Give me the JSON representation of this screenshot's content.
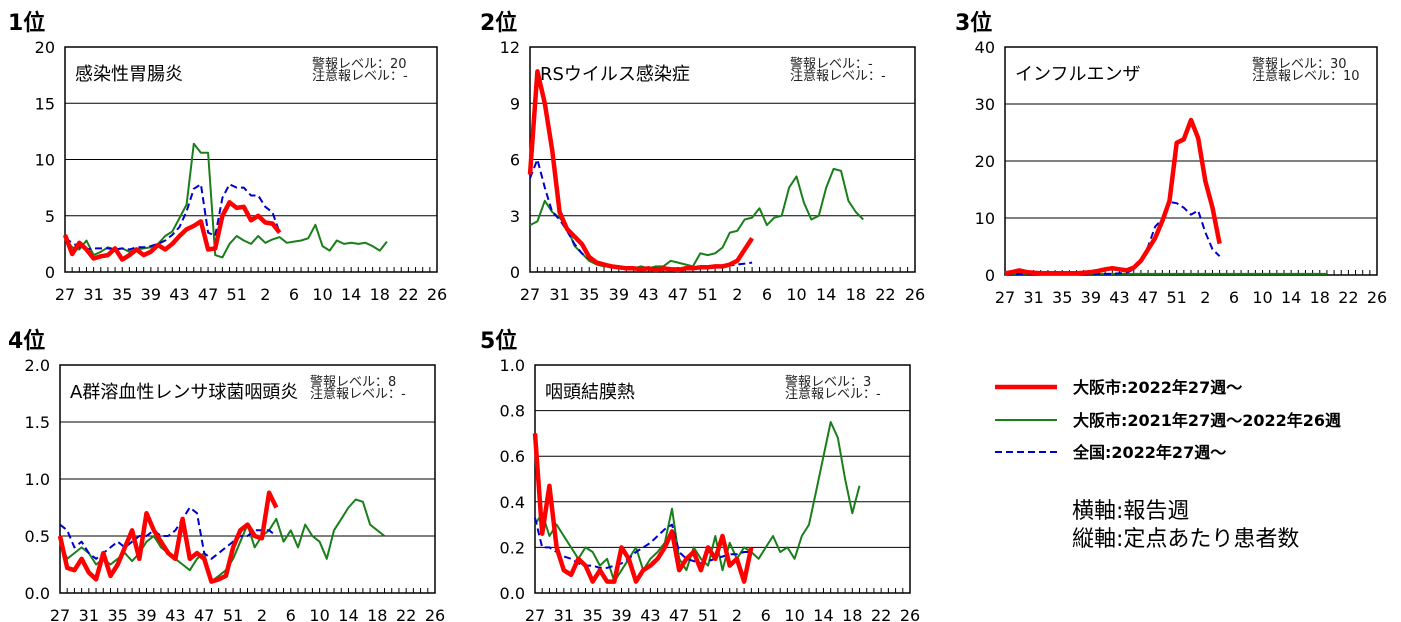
{
  "colors": {
    "osaka_current": "#ff0000",
    "osaka_previous": "#1a7f1a",
    "national": "#0000cc",
    "grid": "#000000"
  },
  "x_tick_labels": [
    "27",
    "31",
    "35",
    "39",
    "43",
    "47",
    "51",
    "2",
    "6",
    "10",
    "14",
    "18",
    "22",
    "26"
  ],
  "legend": {
    "items": [
      {
        "label": "大阪市:2022年27週～",
        "style": "thick-red"
      },
      {
        "label": "大阪市:2021年27週～2022年26週",
        "style": "thin-green"
      },
      {
        "label": "全国:2022年27週～",
        "style": "dashed-blue"
      }
    ]
  },
  "notes": {
    "x_axis": "横軸:報告週",
    "y_axis": "縦軸:定点あたり患者数"
  },
  "chart_data": [
    {
      "type": "line",
      "rank": "1位",
      "title": "感染性胃腸炎",
      "alert_label": "警報レベル：",
      "alert_value": "20",
      "caution_label": "注意報レベル：",
      "caution_value": "-",
      "ylim": [
        0,
        20
      ],
      "yticks": [
        "0",
        "5",
        "10",
        "15",
        "20"
      ],
      "series": [
        {
          "key": "osaka_current",
          "values": [
            3.3,
            1.6,
            2.6,
            2.0,
            1.2,
            1.4,
            1.5,
            2.1,
            1.1,
            1.5,
            2.0,
            1.5,
            1.8,
            2.4,
            2.0,
            2.5,
            3.2,
            3.8,
            4.1,
            4.5,
            2.0,
            2.1,
            5.0,
            6.2,
            5.7,
            5.8,
            4.6,
            5.0,
            4.4,
            4.3,
            3.5
          ]
        },
        {
          "key": "osaka_previous",
          "values": [
            3.0,
            2.2,
            2.0,
            2.8,
            1.5,
            1.8,
            2.2,
            2.0,
            2.1,
            1.8,
            2.0,
            2.1,
            2.2,
            2.5,
            3.2,
            3.6,
            4.8,
            6.0,
            11.4,
            10.6,
            10.6,
            1.5,
            1.3,
            2.5,
            3.2,
            2.8,
            2.5,
            3.2,
            2.6,
            2.9,
            3.1,
            2.6,
            2.7,
            2.8,
            3.0,
            4.2,
            2.3,
            1.9,
            2.8,
            2.5,
            2.6,
            2.5,
            2.6,
            2.3,
            1.9,
            2.7
          ]
        },
        {
          "key": "national",
          "values": [
            3.0,
            2.6,
            2.2,
            2.0,
            2.1,
            2.1,
            2.1,
            2.0,
            2.1,
            2.0,
            2.2,
            2.2,
            2.3,
            2.5,
            2.8,
            3.3,
            4.0,
            5.4,
            7.4,
            7.8,
            3.5,
            3.2,
            6.6,
            7.8,
            7.5,
            7.5,
            6.8,
            6.8,
            5.8,
            5.3,
            3.5
          ]
        }
      ]
    },
    {
      "type": "line",
      "rank": "2位",
      "title": "RSウイルス感染症",
      "alert_label": "警報レベル：",
      "alert_value": "-",
      "caution_label": "注意報レベル：",
      "caution_value": "-",
      "ylim": [
        0,
        12
      ],
      "yticks": [
        "0",
        "3",
        "6",
        "9",
        "12"
      ],
      "series": [
        {
          "key": "osaka_current",
          "values": [
            5.2,
            10.7,
            9.0,
            6.5,
            3.2,
            2.3,
            1.9,
            1.5,
            0.8,
            0.5,
            0.4,
            0.3,
            0.25,
            0.2,
            0.2,
            0.15,
            0.2,
            0.1,
            0.2,
            0.15,
            0.1,
            0.2,
            0.2,
            0.25,
            0.25,
            0.3,
            0.3,
            0.4,
            0.6,
            1.2,
            1.8
          ]
        },
        {
          "key": "osaka_previous",
          "values": [
            2.5,
            2.7,
            3.8,
            3.2,
            2.9,
            2.4,
            1.4,
            1.0,
            0.6,
            0.4,
            0.3,
            0.3,
            0.3,
            0.2,
            0.2,
            0.3,
            0.2,
            0.3,
            0.3,
            0.6,
            0.5,
            0.4,
            0.3,
            1.0,
            0.9,
            1.0,
            1.3,
            2.1,
            2.2,
            2.8,
            2.9,
            3.4,
            2.5,
            2.9,
            3.0,
            4.5,
            5.1,
            3.7,
            2.8,
            3.0,
            4.5,
            5.5,
            5.4,
            3.8,
            3.2,
            2.8
          ]
        },
        {
          "key": "national",
          "values": [
            5.0,
            6.0,
            4.5,
            3.2,
            2.8,
            2.2,
            1.5,
            1.0,
            0.7,
            0.5,
            0.4,
            0.35,
            0.3,
            0.25,
            0.2,
            0.2,
            0.2,
            0.2,
            0.2,
            0.2,
            0.2,
            0.2,
            0.2,
            0.2,
            0.2,
            0.3,
            0.3,
            0.35,
            0.4,
            0.45,
            0.5
          ]
        }
      ]
    },
    {
      "type": "line",
      "rank": "3位",
      "title": "インフルエンザ",
      "alert_label": "警報レベル：",
      "alert_value": "30",
      "caution_label": "注意報レベル：",
      "caution_value": "10",
      "ylim": [
        0,
        40
      ],
      "yticks": [
        "0",
        "10",
        "20",
        "30",
        "40"
      ],
      "series": [
        {
          "key": "osaka_current",
          "values": [
            0.3,
            0.5,
            0.8,
            0.5,
            0.4,
            0.3,
            0.3,
            0.3,
            0.3,
            0.3,
            0.3,
            0.4,
            0.5,
            0.7,
            1.0,
            1.2,
            1.0,
            0.8,
            1.3,
            2.5,
            4.5,
            6.5,
            9.5,
            13.0,
            23.2,
            23.8,
            27.2,
            24.0,
            16.5,
            11.8,
            5.5
          ]
        },
        {
          "key": "osaka_previous",
          "values": [
            0.2,
            0.2,
            0.2,
            0.2,
            0.2,
            0.2,
            0.2,
            0.2,
            0.2,
            0.2,
            0.2,
            0.2,
            0.2,
            0.2,
            0.2,
            0.2,
            0.2,
            0.2,
            0.2,
            0.2,
            0.2,
            0.2,
            0.2,
            0.2,
            0.2,
            0.2,
            0.2,
            0.2,
            0.2,
            0.2,
            0.2,
            0.2,
            0.2,
            0.2,
            0.2,
            0.2,
            0.2,
            0.2,
            0.2,
            0.2,
            0.2,
            0.2,
            0.2,
            0.2,
            0.2,
            0.2
          ]
        },
        {
          "key": "national",
          "values": [
            0.2,
            0.2,
            0.2,
            0.2,
            0.2,
            0.2,
            0.2,
            0.2,
            0.2,
            0.2,
            0.2,
            0.2,
            0.2,
            0.2,
            0.2,
            0.2,
            0.3,
            0.4,
            1.0,
            2.5,
            5.0,
            8.5,
            9.8,
            12.8,
            12.6,
            11.8,
            10.6,
            11.3,
            7.5,
            4.5,
            3.3
          ]
        }
      ]
    },
    {
      "type": "line",
      "rank": "4位",
      "title": "A群溶血性レンサ球菌咽頭炎",
      "alert_label": "警報レベル：",
      "alert_value": "8",
      "caution_label": "注意報レベル：",
      "caution_value": "-",
      "ylim": [
        0,
        2.0
      ],
      "yticks": [
        "0.0",
        "0.5",
        "1.0",
        "1.5",
        "2.0"
      ],
      "series": [
        {
          "key": "osaka_current",
          "values": [
            0.5,
            0.22,
            0.2,
            0.3,
            0.18,
            0.12,
            0.35,
            0.15,
            0.25,
            0.4,
            0.55,
            0.3,
            0.7,
            0.55,
            0.45,
            0.35,
            0.3,
            0.65,
            0.3,
            0.35,
            0.3,
            0.1,
            0.12,
            0.15,
            0.4,
            0.55,
            0.6,
            0.5,
            0.48,
            0.88,
            0.75
          ]
        },
        {
          "key": "osaka_previous",
          "values": [
            0.45,
            0.3,
            0.35,
            0.4,
            0.35,
            0.25,
            0.3,
            0.25,
            0.3,
            0.35,
            0.28,
            0.35,
            0.45,
            0.5,
            0.4,
            0.35,
            0.3,
            0.25,
            0.2,
            0.3,
            0.35,
            0.1,
            0.15,
            0.2,
            0.3,
            0.45,
            0.6,
            0.4,
            0.5,
            0.55,
            0.65,
            0.45,
            0.55,
            0.4,
            0.6,
            0.5,
            0.45,
            0.3,
            0.55,
            0.65,
            0.75,
            0.82,
            0.8,
            0.6,
            0.55,
            0.5
          ]
        },
        {
          "key": "national",
          "values": [
            0.6,
            0.55,
            0.4,
            0.45,
            0.35,
            0.3,
            0.35,
            0.4,
            0.45,
            0.4,
            0.45,
            0.5,
            0.5,
            0.55,
            0.5,
            0.5,
            0.55,
            0.65,
            0.75,
            0.7,
            0.35,
            0.3,
            0.35,
            0.4,
            0.45,
            0.5,
            0.5,
            0.55,
            0.55,
            0.55,
            0.5
          ]
        }
      ]
    },
    {
      "type": "line",
      "rank": "5位",
      "title": "咽頭結膜熱",
      "alert_label": "警報レベル：",
      "alert_value": "3",
      "caution_label": "注意報レベル：",
      "caution_value": "-",
      "ylim": [
        0,
        1.0
      ],
      "yticks": [
        "0.0",
        "0.2",
        "0.4",
        "0.6",
        "0.8",
        "1.0"
      ],
      "series": [
        {
          "key": "osaka_current",
          "values": [
            0.7,
            0.26,
            0.47,
            0.2,
            0.1,
            0.08,
            0.15,
            0.12,
            0.05,
            0.1,
            0.05,
            0.05,
            0.2,
            0.15,
            0.05,
            0.1,
            0.12,
            0.15,
            0.2,
            0.27,
            0.1,
            0.15,
            0.18,
            0.1,
            0.2,
            0.15,
            0.25,
            0.12,
            0.15,
            0.05,
            0.2
          ]
        },
        {
          "key": "osaka_previous",
          "values": [
            0.3,
            0.35,
            0.25,
            0.3,
            0.25,
            0.2,
            0.15,
            0.2,
            0.18,
            0.12,
            0.15,
            0.05,
            0.1,
            0.15,
            0.2,
            0.1,
            0.15,
            0.18,
            0.22,
            0.37,
            0.15,
            0.1,
            0.2,
            0.15,
            0.12,
            0.25,
            0.1,
            0.22,
            0.15,
            0.2,
            0.18,
            0.15,
            0.2,
            0.25,
            0.18,
            0.2,
            0.15,
            0.25,
            0.3,
            0.45,
            0.6,
            0.75,
            0.68,
            0.5,
            0.35,
            0.47
          ]
        },
        {
          "key": "national",
          "values": [
            0.33,
            0.2,
            0.2,
            0.18,
            0.16,
            0.15,
            0.13,
            0.12,
            0.12,
            0.11,
            0.11,
            0.12,
            0.13,
            0.15,
            0.18,
            0.2,
            0.22,
            0.25,
            0.28,
            0.3,
            0.18,
            0.15,
            0.14,
            0.13,
            0.14,
            0.15,
            0.16,
            0.17,
            0.17,
            0.18,
            0.18
          ]
        }
      ]
    }
  ]
}
